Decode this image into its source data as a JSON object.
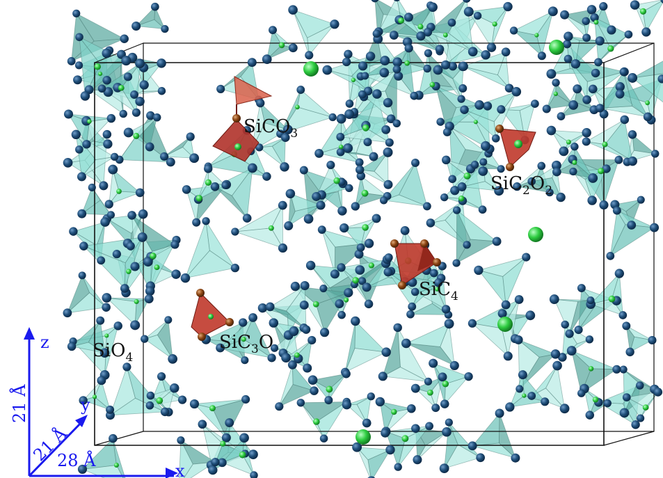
{
  "colors": {
    "oxygen": "#1f4e79",
    "silicon": "#2ecc40",
    "carbon": "#8b4513",
    "sio4_tetra": "#7fd3c9",
    "highlight_tetra": "#c0392b",
    "axes": "#1a1aee",
    "cell_box": "#111111"
  },
  "labels": {
    "sico3": {
      "base": "SiCO",
      "sub": "3"
    },
    "sic2o2": {
      "base1": "SiC",
      "sub1": "2",
      "base2": "O",
      "sub2": "2"
    },
    "sic4": {
      "base": "SiC",
      "sub": "4"
    },
    "sic3o": {
      "base1": "SiC",
      "sub1": "3",
      "base2": "O"
    },
    "sio4": {
      "base": "SiO",
      "sub": "4"
    }
  },
  "axes": {
    "x_label": "x",
    "y_label": "y",
    "z_label": "z",
    "x_length": "28 Å",
    "y_length": "21 Å",
    "z_length": "21 Å"
  }
}
